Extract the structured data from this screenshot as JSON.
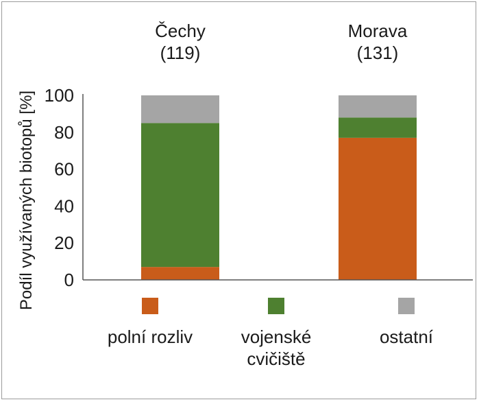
{
  "chart_data": {
    "type": "bar",
    "stacked": true,
    "categories": [
      "Čechy",
      "Morava"
    ],
    "category_counts": [
      "(119)",
      "(131)"
    ],
    "series": [
      {
        "name": "polní rozliv",
        "values": [
          7,
          77
        ],
        "color": "#c95c1a"
      },
      {
        "name": "vojenské cvičiště",
        "values": [
          78,
          11
        ],
        "color": "#4e8030"
      },
      {
        "name": "ostatní",
        "values": [
          17,
          14
        ],
        "color": "#a5a5a5"
      }
    ],
    "legend_labels": [
      [
        "polní rozliv"
      ],
      [
        "vojenské",
        "cvičiště"
      ],
      [
        "ostatní"
      ]
    ],
    "ylabel": "Podíl využívaných biotopů [%]",
    "ylim": [
      0,
      100
    ],
    "yticks": [
      0,
      20,
      40,
      60,
      80,
      100
    ],
    "grid": false,
    "legend_position": "bottom"
  }
}
